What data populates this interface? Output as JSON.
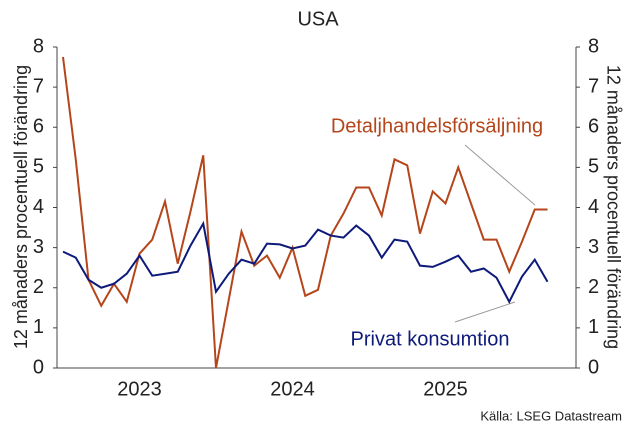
{
  "chart_data": {
    "type": "line",
    "title": "USA",
    "ylabel": "12 månaders procentuell förändring",
    "y2label": "12 månaders procentuell förändring",
    "source": "Källa: LSEG Datastream",
    "categories": [
      null,
      null,
      null,
      null,
      null,
      null,
      "2023",
      null,
      null,
      null,
      null,
      null,
      null,
      null,
      null,
      null,
      null,
      null,
      "2024",
      null,
      null,
      null,
      null,
      null,
      null,
      null,
      null,
      null,
      null,
      null,
      "2025",
      null,
      null,
      null,
      null,
      null,
      null,
      null,
      null
    ],
    "series": [
      {
        "name": "Detaljhandelsförsäljning",
        "color": "#b5451b",
        "values": [
          7.75,
          5.2,
          2.2,
          1.55,
          2.1,
          1.65,
          2.85,
          3.2,
          4.15,
          2.6,
          3.9,
          5.3,
          0,
          1.7,
          3.4,
          2.55,
          2.8,
          2.25,
          3.0,
          1.8,
          1.95,
          3.3,
          3.85,
          4.5,
          4.5,
          3.8,
          5.2,
          5.05,
          3.35,
          4.4,
          4.1,
          5.0,
          4.1,
          3.2,
          3.2,
          2.4,
          3.15,
          3.95,
          3.95
        ]
      },
      {
        "name": "Privat konsumtion",
        "color": "#0d1a7a",
        "values": [
          2.9,
          2.75,
          2.2,
          2.0,
          2.1,
          2.35,
          2.8,
          2.3,
          2.35,
          2.4,
          3.05,
          3.6,
          1.9,
          2.35,
          2.7,
          2.6,
          3.1,
          3.08,
          2.98,
          3.05,
          3.45,
          3.3,
          3.25,
          3.55,
          3.3,
          2.75,
          3.2,
          3.15,
          2.55,
          2.52,
          2.65,
          2.8,
          2.4,
          2.48,
          2.25,
          1.65,
          2.28,
          2.7,
          2.15
        ]
      }
    ],
    "ylim": [
      0,
      8
    ],
    "yticks": [
      0,
      1,
      2,
      3,
      4,
      5,
      6,
      7,
      8
    ],
    "y2lim": [
      0,
      8
    ],
    "y2ticks": [
      0,
      1,
      2,
      3,
      4,
      5,
      6,
      7,
      8
    ]
  }
}
